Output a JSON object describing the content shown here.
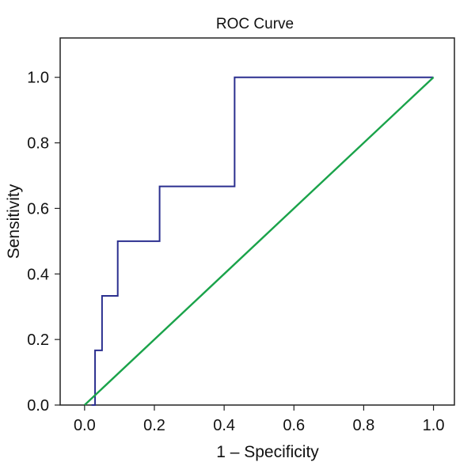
{
  "chart_data": {
    "type": "line",
    "title": "ROC Curve",
    "xlabel": "1 – Specificity",
    "ylabel": "Sensitivity",
    "xlim": [
      -0.07,
      1.06
    ],
    "ylim": [
      0.0,
      1.12
    ],
    "x_ticks": [
      "0.0",
      "0.2",
      "0.4",
      "0.6",
      "0.8",
      "1.0"
    ],
    "y_ticks": [
      "0.0",
      "0.2",
      "0.4",
      "0.6",
      "0.8",
      "1.0"
    ],
    "grid": false,
    "legend": "none",
    "series": [
      {
        "color": "#2b2f8f",
        "points": [
          [
            0.02,
            0.0
          ],
          [
            0.03,
            0.0
          ],
          [
            0.03,
            0.167
          ],
          [
            0.05,
            0.167
          ],
          [
            0.05,
            0.333
          ],
          [
            0.095,
            0.333
          ],
          [
            0.095,
            0.5
          ],
          [
            0.215,
            0.5
          ],
          [
            0.215,
            0.667
          ],
          [
            0.43,
            0.667
          ],
          [
            0.43,
            1.0
          ],
          [
            1.0,
            1.0
          ]
        ]
      },
      {
        "color": "#1aa34a",
        "points": [
          [
            0.0,
            0.0
          ],
          [
            1.0,
            1.0
          ]
        ]
      }
    ]
  }
}
